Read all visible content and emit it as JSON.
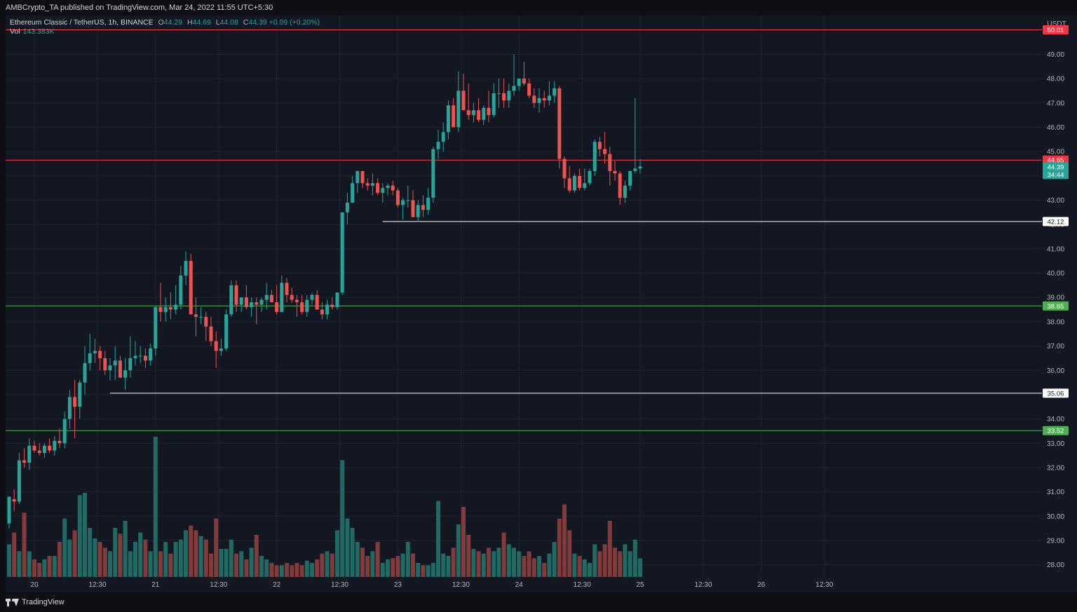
{
  "header": {
    "publish_text": "AMBCrypto_TA published on TradingView.com, Mar 24, 2022 11:55 UTC+5:30"
  },
  "legend": {
    "symbol": "Ethereum Classic / TetherUS, 1h, BINANCE",
    "open_label": "O",
    "open": "44.29",
    "high_label": "H",
    "high": "44.69",
    "low_label": "L",
    "low": "44.08",
    "close_label": "C",
    "close": "44.39",
    "change": "+0.09 (+0.20%)",
    "vol_label": "Vol",
    "vol": "143.383K"
  },
  "footer": {
    "brand": "TradingView",
    "logo_icon": "tradingview-logo-icon"
  },
  "colors": {
    "background": "#131722",
    "up": "#26a69a",
    "down": "#ef5350",
    "up_vol": "#1f6b64",
    "down_vol": "#823a3a",
    "grid": "#1f2330"
  },
  "chart_data": {
    "type": "candlestick",
    "currency": "USDT",
    "ylim": [
      27.5,
      50.6
    ],
    "y_ticks": [
      "28.00",
      "29.00",
      "30.00",
      "31.00",
      "32.00",
      "33.00",
      "34.00",
      "35.00",
      "36.00",
      "37.00",
      "38.00",
      "39.00",
      "40.00",
      "41.00",
      "42.00",
      "43.00",
      "44.00",
      "45.00",
      "46.00",
      "47.00",
      "48.00",
      "49.00"
    ],
    "x_ticks": [
      {
        "label": "20",
        "i": 5
      },
      {
        "label": "12:30",
        "i": 17.5
      },
      {
        "label": "21",
        "i": 29
      },
      {
        "label": "12:30",
        "i": 41.5
      },
      {
        "label": "22",
        "i": 53
      },
      {
        "label": "12:30",
        "i": 65.5
      },
      {
        "label": "23",
        "i": 77
      },
      {
        "label": "12:30",
        "i": 89.5
      },
      {
        "label": "24",
        "i": 101
      },
      {
        "label": "12:30",
        "i": 113.5
      },
      {
        "label": "25",
        "i": 125
      },
      {
        "label": "12:30",
        "i": 137.5
      },
      {
        "label": "26",
        "i": 149
      },
      {
        "label": "12:30",
        "i": 161.5
      }
    ],
    "levels": [
      {
        "price": 50.01,
        "label": "50.01",
        "color": "#f23645",
        "start_i": 0
      },
      {
        "price": 44.65,
        "label": "44.65",
        "color": "#f23645",
        "start_i": 0
      },
      {
        "price": 42.12,
        "label": "42.12",
        "color": "#ffffff",
        "start_i": 74
      },
      {
        "price": 38.65,
        "label": "38.65",
        "color": "#4caf50",
        "start_i": 0
      },
      {
        "price": 35.06,
        "label": "35.06",
        "color": "#ffffff",
        "start_i": 20
      },
      {
        "price": 33.52,
        "label": "33.52",
        "color": "#4caf50",
        "start_i": 0
      }
    ],
    "last_price": {
      "price": 44.39,
      "label": "44.39",
      "countdown": "34:44"
    },
    "ohlc": [
      [
        29.7,
        30.8,
        29.5,
        30.8
      ],
      [
        30.7,
        31.1,
        30.2,
        30.6
      ],
      [
        30.6,
        32.6,
        30.5,
        32.3
      ],
      [
        32.3,
        32.8,
        32.0,
        32.2
      ],
      [
        32.2,
        33.2,
        31.9,
        32.9
      ],
      [
        32.9,
        33.1,
        32.6,
        32.7
      ],
      [
        32.7,
        33.0,
        32.5,
        32.6
      ],
      [
        32.6,
        33.0,
        32.4,
        32.9
      ],
      [
        32.9,
        33.2,
        32.6,
        32.7
      ],
      [
        32.7,
        33.3,
        32.5,
        33.1
      ],
      [
        33.1,
        33.6,
        32.8,
        33.0
      ],
      [
        33.0,
        34.3,
        32.8,
        34.0
      ],
      [
        34.0,
        35.2,
        33.6,
        34.9
      ],
      [
        34.9,
        35.6,
        33.2,
        34.5
      ],
      [
        34.5,
        35.6,
        34.0,
        35.5
      ],
      [
        35.5,
        37.0,
        35.0,
        36.3
      ],
      [
        36.3,
        37.5,
        36.0,
        36.7
      ],
      [
        36.7,
        37.3,
        36.3,
        36.8
      ],
      [
        36.8,
        37.0,
        36.0,
        36.5
      ],
      [
        36.5,
        36.8,
        35.8,
        36.0
      ],
      [
        36.0,
        36.5,
        35.6,
        36.2
      ],
      [
        36.2,
        37.0,
        35.6,
        36.4
      ],
      [
        36.4,
        36.6,
        35.7,
        35.7
      ],
      [
        35.7,
        36.5,
        35.2,
        36.0
      ],
      [
        36.0,
        37.4,
        35.7,
        36.5
      ],
      [
        36.5,
        37.2,
        36.2,
        36.6
      ],
      [
        36.6,
        37.0,
        36.3,
        36.6
      ],
      [
        36.6,
        36.9,
        36.1,
        36.4
      ],
      [
        36.4,
        37.1,
        36.2,
        36.9
      ],
      [
        36.9,
        38.6,
        36.6,
        38.6
      ],
      [
        38.6,
        39.6,
        38.0,
        38.4
      ],
      [
        38.4,
        39.0,
        38.0,
        38.6
      ],
      [
        38.6,
        39.2,
        38.1,
        38.5
      ],
      [
        38.5,
        39.5,
        38.3,
        38.7
      ],
      [
        38.7,
        40.3,
        38.5,
        39.9
      ],
      [
        39.9,
        40.9,
        39.5,
        40.5
      ],
      [
        40.5,
        40.8,
        38.4,
        38.3
      ],
      [
        38.3,
        39.0,
        37.4,
        38.2
      ],
      [
        38.2,
        38.6,
        37.9,
        38.2
      ],
      [
        38.2,
        38.4,
        37.2,
        37.8
      ],
      [
        37.8,
        38.2,
        37.0,
        37.2
      ],
      [
        37.2,
        37.6,
        36.1,
        36.8
      ],
      [
        36.8,
        37.3,
        36.6,
        36.9
      ],
      [
        36.9,
        38.5,
        36.8,
        38.3
      ],
      [
        38.3,
        39.7,
        38.2,
        39.5
      ],
      [
        39.5,
        39.7,
        38.4,
        38.7
      ],
      [
        38.7,
        39.0,
        38.4,
        39.0
      ],
      [
        39.0,
        39.5,
        38.5,
        38.6
      ],
      [
        38.6,
        39.0,
        38.2,
        38.8
      ],
      [
        38.8,
        39.0,
        37.9,
        38.7
      ],
      [
        38.7,
        39.0,
        38.4,
        38.9
      ],
      [
        38.9,
        39.6,
        38.5,
        39.1
      ],
      [
        39.1,
        39.3,
        38.8,
        38.8
      ],
      [
        38.8,
        39.5,
        38.3,
        38.4
      ],
      [
        38.4,
        39.9,
        38.5,
        39.6
      ],
      [
        39.6,
        39.8,
        38.8,
        39.1
      ],
      [
        39.1,
        39.4,
        38.8,
        38.9
      ],
      [
        38.9,
        39.1,
        38.2,
        38.8
      ],
      [
        38.8,
        39.1,
        38.3,
        38.4
      ],
      [
        38.4,
        39.1,
        38.2,
        38.9
      ],
      [
        38.9,
        39.2,
        38.7,
        39.1
      ],
      [
        39.1,
        39.3,
        38.5,
        38.5
      ],
      [
        38.5,
        38.8,
        38.1,
        38.3
      ],
      [
        38.3,
        38.9,
        38.1,
        38.7
      ],
      [
        38.7,
        39.0,
        38.5,
        38.6
      ],
      [
        38.6,
        39.2,
        38.5,
        39.2
      ],
      [
        39.2,
        42.5,
        39.1,
        42.5
      ],
      [
        42.5,
        43.3,
        42.0,
        42.9
      ],
      [
        42.9,
        44.0,
        42.9,
        43.7
      ],
      [
        43.7,
        44.2,
        43.3,
        44.2
      ],
      [
        44.2,
        44.2,
        43.5,
        43.7
      ],
      [
        43.7,
        43.9,
        43.4,
        43.6
      ],
      [
        43.6,
        44.1,
        43.2,
        43.7
      ],
      [
        43.7,
        43.9,
        43.2,
        43.3
      ],
      [
        43.3,
        43.7,
        42.9,
        43.5
      ],
      [
        43.5,
        43.7,
        43.2,
        43.6
      ],
      [
        43.6,
        43.8,
        43.2,
        43.4
      ],
      [
        43.4,
        43.5,
        42.7,
        42.8
      ],
      [
        42.8,
        43.1,
        42.2,
        43.0
      ],
      [
        43.0,
        43.6,
        42.7,
        43.0
      ],
      [
        43.0,
        43.4,
        42.5,
        42.3
      ],
      [
        42.3,
        43.0,
        42.1,
        42.8
      ],
      [
        42.8,
        43.2,
        42.3,
        42.6
      ],
      [
        42.6,
        43.5,
        42.4,
        43.1
      ],
      [
        43.1,
        45.2,
        42.9,
        45.1
      ],
      [
        45.1,
        45.9,
        44.7,
        45.4
      ],
      [
        45.4,
        46.2,
        45.0,
        45.8
      ],
      [
        45.8,
        47.1,
        45.5,
        46.9
      ],
      [
        46.9,
        47.2,
        46.0,
        46.0
      ],
      [
        46.0,
        48.3,
        45.8,
        47.5
      ],
      [
        47.5,
        48.2,
        46.7,
        46.7
      ],
      [
        46.7,
        47.8,
        46.3,
        46.5
      ],
      [
        46.5,
        47.0,
        46.2,
        46.7
      ],
      [
        46.7,
        47.2,
        46.2,
        46.3
      ],
      [
        46.3,
        46.9,
        46.1,
        46.8
      ],
      [
        46.8,
        47.5,
        46.2,
        46.5
      ],
      [
        46.5,
        47.8,
        46.4,
        47.4
      ],
      [
        47.4,
        48.0,
        46.8,
        47.4
      ],
      [
        47.4,
        48.0,
        46.8,
        47.1
      ],
      [
        47.1,
        47.8,
        46.8,
        47.5
      ],
      [
        47.5,
        49.0,
        47.3,
        47.7
      ],
      [
        47.7,
        48.0,
        47.5,
        48.0
      ],
      [
        48.0,
        48.7,
        47.7,
        47.8
      ],
      [
        47.8,
        48.0,
        47.2,
        47.3
      ],
      [
        47.3,
        47.6,
        46.8,
        47.0
      ],
      [
        47.0,
        47.6,
        46.6,
        47.2
      ],
      [
        47.2,
        47.5,
        46.8,
        47.1
      ],
      [
        47.1,
        47.9,
        46.9,
        47.3
      ],
      [
        47.3,
        47.9,
        47.0,
        47.6
      ],
      [
        47.6,
        47.7,
        44.3,
        44.7
      ],
      [
        44.7,
        44.8,
        43.5,
        43.9
      ],
      [
        43.9,
        44.4,
        43.3,
        43.4
      ],
      [
        43.4,
        44.1,
        43.3,
        44.0
      ],
      [
        44.0,
        44.3,
        43.4,
        43.5
      ],
      [
        43.5,
        44.3,
        43.4,
        43.7
      ],
      [
        43.7,
        44.3,
        43.6,
        44.2
      ],
      [
        44.2,
        45.5,
        44.0,
        45.4
      ],
      [
        45.4,
        45.6,
        44.8,
        45.1
      ],
      [
        45.1,
        45.8,
        44.5,
        44.9
      ],
      [
        44.9,
        45.2,
        43.6,
        44.2
      ],
      [
        44.2,
        44.6,
        43.8,
        44.1
      ],
      [
        44.1,
        44.2,
        42.8,
        43.1
      ],
      [
        43.1,
        43.8,
        42.9,
        43.6
      ],
      [
        43.6,
        44.2,
        43.4,
        44.2
      ],
      [
        44.2,
        47.2,
        44.1,
        44.3
      ],
      [
        44.3,
        44.69,
        44.08,
        44.39
      ]
    ],
    "volume": [
      28,
      38,
      22,
      55,
      22,
      15,
      12,
      15,
      18,
      18,
      30,
      50,
      32,
      40,
      70,
      72,
      42,
      33,
      30,
      25,
      22,
      42,
      37,
      48,
      22,
      30,
      38,
      32,
      22,
      120,
      22,
      30,
      20,
      30,
      32,
      40,
      44,
      40,
      35,
      32,
      20,
      50,
      24,
      24,
      32,
      20,
      22,
      15,
      25,
      36,
      18,
      15,
      12,
      10,
      10,
      12,
      10,
      12,
      10,
      14,
      12,
      15,
      20,
      22,
      20,
      40,
      100,
      50,
      42,
      30,
      25,
      18,
      22,
      30,
      12,
      15,
      16,
      18,
      20,
      30,
      20,
      12,
      10,
      10,
      12,
      65,
      20,
      18,
      25,
      45,
      60,
      36,
      24,
      22,
      20,
      25,
      22,
      25,
      38,
      28,
      25,
      22,
      18,
      22,
      16,
      18,
      12,
      20,
      30,
      50,
      62,
      40,
      20,
      18,
      15,
      12,
      28,
      22,
      28,
      48,
      25,
      22,
      28,
      22,
      32,
      16
    ],
    "vol_max": 120
  }
}
